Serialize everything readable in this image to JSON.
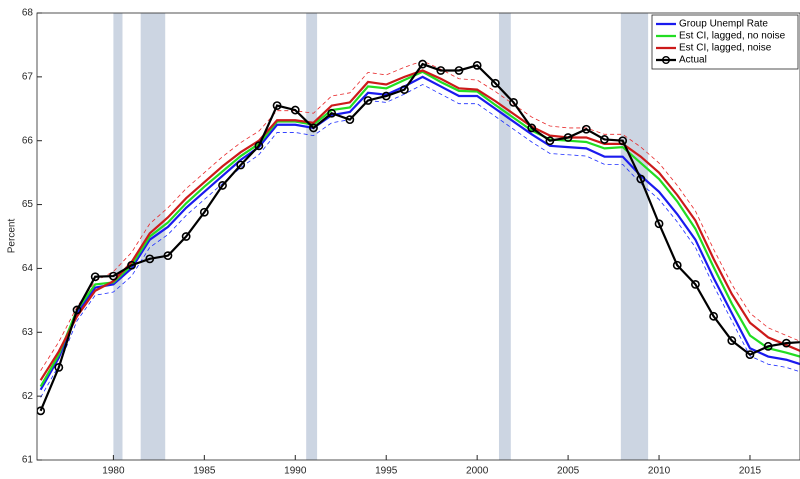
{
  "chart_data": {
    "type": "line",
    "ylabel": "Percent",
    "xlim": [
      1975.8,
      2017.75
    ],
    "ylim": [
      61,
      68
    ],
    "xticks": [
      1980,
      1985,
      1990,
      1995,
      2000,
      2005,
      2010,
      2015
    ],
    "yticks": [
      61,
      62,
      63,
      64,
      65,
      66,
      67,
      68
    ],
    "legend": "upper right",
    "shaded_periods": {
      "color": "#ccd5e2",
      "ranges": [
        [
          1980.0,
          1980.5
        ],
        [
          1981.5,
          1982.85
        ],
        [
          1990.6,
          1991.2
        ],
        [
          2001.2,
          2001.85
        ],
        [
          2007.9,
          2009.4
        ]
      ]
    },
    "x": [
      1976,
      1977,
      1978,
      1979,
      1980,
      1981,
      1982,
      1983,
      1984,
      1985,
      1986,
      1987,
      1988,
      1989,
      1990,
      1991,
      1992,
      1993,
      1994,
      1995,
      1996,
      1997,
      1998,
      1999,
      2000,
      2001,
      2002,
      2003,
      2004,
      2005,
      2006,
      2007,
      2008,
      2009,
      2010,
      2011,
      2012,
      2013,
      2014,
      2015,
      2016,
      2017,
      2018
    ],
    "series": [
      {
        "color": "#e8282a",
        "dash": true,
        "values": [
          62.4,
          62.85,
          63.4,
          63.8,
          63.95,
          64.25,
          64.7,
          64.95,
          65.25,
          65.5,
          65.75,
          65.97,
          66.15,
          66.47,
          66.47,
          66.43,
          66.7,
          66.75,
          67.07,
          67.03,
          67.15,
          67.25,
          67.12,
          66.97,
          66.95,
          66.77,
          66.57,
          66.37,
          66.23,
          66.2,
          66.2,
          66.1,
          66.1,
          65.9,
          65.65,
          65.3,
          64.9,
          64.3,
          63.75,
          63.3,
          63.07,
          62.95,
          62.83
        ]
      },
      {
        "color": "#1a2bff",
        "dash": true,
        "values": [
          61.98,
          62.48,
          63.18,
          63.58,
          63.63,
          63.88,
          64.33,
          64.53,
          64.83,
          65.08,
          65.33,
          65.58,
          65.78,
          66.13,
          66.13,
          66.08,
          66.28,
          66.33,
          66.63,
          66.6,
          66.73,
          66.88,
          66.73,
          66.58,
          66.58,
          66.38,
          66.18,
          65.98,
          65.8,
          65.78,
          65.76,
          65.63,
          65.63,
          65.33,
          65.08,
          64.73,
          64.33,
          63.73,
          63.18,
          62.63,
          62.5,
          62.45,
          62.36
        ]
      },
      {
        "name": "Group Unempl Rate",
        "color": "#1a1aee",
        "values": [
          62.1,
          62.6,
          63.3,
          63.7,
          63.75,
          64.0,
          64.45,
          64.65,
          64.95,
          65.2,
          65.45,
          65.7,
          65.9,
          66.25,
          66.25,
          66.2,
          66.4,
          66.45,
          66.75,
          66.72,
          66.85,
          67.0,
          66.85,
          66.7,
          66.7,
          66.5,
          66.3,
          66.1,
          65.92,
          65.9,
          65.88,
          65.75,
          65.75,
          65.45,
          65.2,
          64.85,
          64.45,
          63.85,
          63.3,
          62.75,
          62.62,
          62.57,
          62.48
        ]
      },
      {
        "name": "Est CI, lagged, no noise",
        "color": "#22dd22",
        "values": [
          62.15,
          62.65,
          63.35,
          63.75,
          63.78,
          64.05,
          64.5,
          64.72,
          65.02,
          65.28,
          65.52,
          65.76,
          65.95,
          66.3,
          66.3,
          66.25,
          66.48,
          66.52,
          66.85,
          66.82,
          66.95,
          67.08,
          66.92,
          66.78,
          66.77,
          66.56,
          66.36,
          66.16,
          66.02,
          66.0,
          65.98,
          65.88,
          65.9,
          65.65,
          65.4,
          65.05,
          64.62,
          64.02,
          63.45,
          62.95,
          62.75,
          62.68,
          62.6
        ]
      },
      {
        "name": "Est CI, lagged, noise",
        "color": "#cc1a1a",
        "values": [
          62.25,
          62.7,
          63.25,
          63.65,
          63.8,
          64.1,
          64.55,
          64.8,
          65.1,
          65.35,
          65.6,
          65.82,
          66.0,
          66.32,
          66.32,
          66.28,
          66.55,
          66.6,
          66.92,
          66.88,
          67.0,
          67.1,
          66.97,
          66.82,
          66.8,
          66.62,
          66.42,
          66.22,
          66.08,
          66.05,
          66.05,
          65.95,
          65.95,
          65.75,
          65.5,
          65.15,
          64.75,
          64.15,
          63.6,
          63.15,
          62.92,
          62.8,
          62.68
        ]
      },
      {
        "name": "Actual",
        "color": "#000000",
        "markers": true,
        "values": [
          61.77,
          62.45,
          63.35,
          63.87,
          63.88,
          64.05,
          64.15,
          64.2,
          64.5,
          64.88,
          65.3,
          65.62,
          65.92,
          66.55,
          66.48,
          66.2,
          66.43,
          66.33,
          66.63,
          66.7,
          66.8,
          67.2,
          67.1,
          67.1,
          67.18,
          66.9,
          66.6,
          66.2,
          66.0,
          66.05,
          66.18,
          66.02,
          66.0,
          65.4,
          64.7,
          64.05,
          63.75,
          63.25,
          62.87,
          62.65,
          62.78,
          62.83,
          62.85
        ]
      }
    ]
  }
}
